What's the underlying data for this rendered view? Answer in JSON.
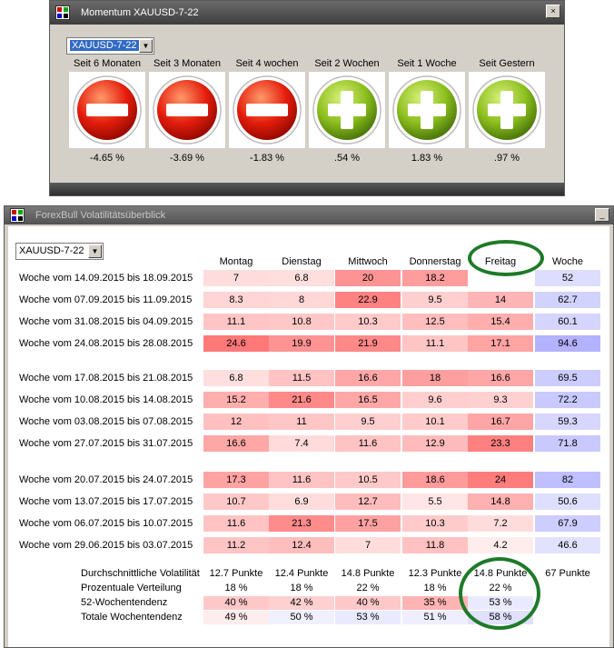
{
  "momentum": {
    "title": "Momentum XAUUSD-7-22",
    "combo_value": "XAUUSD-7-22",
    "close_glyph": "×",
    "items": [
      {
        "label": "Seit 6 Monaten",
        "value": "-4.65 %",
        "sign": "minus"
      },
      {
        "label": "Seit 3 Monaten",
        "value": "-3.69 %",
        "sign": "minus"
      },
      {
        "label": "Seit 4 wochen",
        "value": "-1.83 %",
        "sign": "minus"
      },
      {
        "label": "Seit 2 Wochen",
        "value": ".54 %",
        "sign": "plus"
      },
      {
        "label": "Seit 1 Woche",
        "value": "1.83 %",
        "sign": "plus"
      },
      {
        "label": "Seit Gestern",
        "value": ".97 %",
        "sign": "plus"
      }
    ]
  },
  "volatility": {
    "title": "ForexBull Volatilitätsüberblick",
    "combo_value": "XAUUSD-7-22",
    "minimize_glyph": "_",
    "headers": [
      "Montag",
      "Dienstag",
      "Mittwoch",
      "Donnerstag",
      "Freitag",
      "Woche"
    ],
    "rows": [
      {
        "label": "Woche vom 14.09.2015 bis 18.09.2015",
        "values": [
          "7",
          "6.8",
          "20",
          "18.2",
          "",
          "52"
        ]
      },
      {
        "label": "Woche vom 07.09.2015 bis 11.09.2015",
        "values": [
          "8.3",
          "8",
          "22.9",
          "9.5",
          "14",
          "62.7"
        ]
      },
      {
        "label": "Woche vom 31.08.2015 bis 04.09.2015",
        "values": [
          "11.1",
          "10.8",
          "10.3",
          "12.5",
          "15.4",
          "60.1"
        ]
      },
      {
        "label": "Woche vom 24.08.2015 bis 28.08.2015",
        "values": [
          "24.6",
          "19.9",
          "21.9",
          "11.1",
          "17.1",
          "94.6"
        ]
      },
      {
        "label": "Woche vom 17.08.2015 bis 21.08.2015",
        "values": [
          "6.8",
          "11.5",
          "16.6",
          "18",
          "16.6",
          "69.5"
        ]
      },
      {
        "label": "Woche vom 10.08.2015 bis 14.08.2015",
        "values": [
          "15.2",
          "21.6",
          "16.5",
          "9.6",
          "9.3",
          "72.2"
        ]
      },
      {
        "label": "Woche vom 03.08.2015 bis 07.08.2015",
        "values": [
          "12",
          "11",
          "9.5",
          "10.1",
          "16.7",
          "59.3"
        ]
      },
      {
        "label": "Woche vom 27.07.2015 bis 31.07.2015",
        "values": [
          "16.6",
          "7.4",
          "11.6",
          "12.9",
          "23.3",
          "71.8"
        ]
      },
      {
        "label": "Woche vom 20.07.2015 bis 24.07.2015",
        "values": [
          "17.3",
          "11.6",
          "10.5",
          "18.6",
          "24",
          "82"
        ]
      },
      {
        "label": "Woche vom 13.07.2015 bis 17.07.2015",
        "values": [
          "10.7",
          "6.9",
          "12.7",
          "5.5",
          "14.8",
          "50.6"
        ]
      },
      {
        "label": "Woche vom 06.07.2015 bis 10.07.2015",
        "values": [
          "11.6",
          "21.3",
          "17.5",
          "10.3",
          "7.2",
          "67.9"
        ]
      },
      {
        "label": "Woche vom 29.06.2015 bis 03.07.2015",
        "values": [
          "11.2",
          "12.4",
          "7",
          "11.8",
          "4.2",
          "46.6"
        ]
      }
    ],
    "summary": [
      {
        "label": "Durchschnittliche Volatilität",
        "values": [
          "12.7 Punkte",
          "12.4 Punkte",
          "14.8 Punkte",
          "12.3 Punkte",
          "14.8 Punkte",
          "67 Punkte"
        ]
      },
      {
        "label": "Prozentuale Verteilung",
        "values": [
          "18 %",
          "18 %",
          "22 %",
          "18 %",
          "22 %"
        ]
      },
      {
        "label": "52-Wochentendenz",
        "values": [
          "40 %",
          "42 %",
          "40 %",
          "35 %",
          "53 %"
        ]
      },
      {
        "label": "Totale Wochentendenz",
        "values": [
          "49 %",
          "50 %",
          "53 %",
          "51 %",
          "58 %"
        ]
      }
    ]
  }
}
